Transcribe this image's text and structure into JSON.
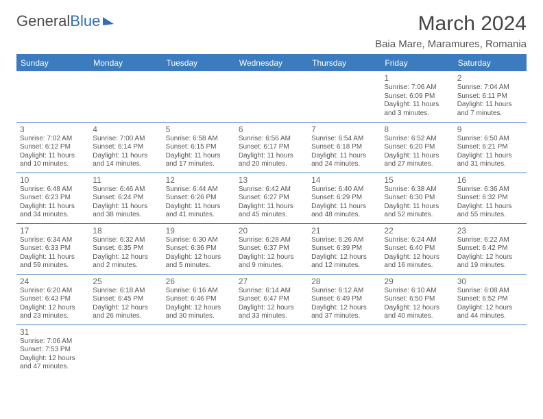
{
  "logo": {
    "textA": "General",
    "textB": "Blue"
  },
  "title": "March 2024",
  "location": "Baia Mare, Maramures, Romania",
  "colors": {
    "accent": "#3b7bbf",
    "text": "#555"
  },
  "dayHeaders": [
    "Sunday",
    "Monday",
    "Tuesday",
    "Wednesday",
    "Thursday",
    "Friday",
    "Saturday"
  ],
  "weeks": [
    [
      null,
      null,
      null,
      null,
      null,
      {
        "n": "1",
        "sr": "7:06 AM",
        "ss": "6:09 PM",
        "dl": "11 hours and 3 minutes."
      },
      {
        "n": "2",
        "sr": "7:04 AM",
        "ss": "6:11 PM",
        "dl": "11 hours and 7 minutes."
      }
    ],
    [
      {
        "n": "3",
        "sr": "7:02 AM",
        "ss": "6:12 PM",
        "dl": "11 hours and 10 minutes."
      },
      {
        "n": "4",
        "sr": "7:00 AM",
        "ss": "6:14 PM",
        "dl": "11 hours and 14 minutes."
      },
      {
        "n": "5",
        "sr": "6:58 AM",
        "ss": "6:15 PM",
        "dl": "11 hours and 17 minutes."
      },
      {
        "n": "6",
        "sr": "6:56 AM",
        "ss": "6:17 PM",
        "dl": "11 hours and 20 minutes."
      },
      {
        "n": "7",
        "sr": "6:54 AM",
        "ss": "6:18 PM",
        "dl": "11 hours and 24 minutes."
      },
      {
        "n": "8",
        "sr": "6:52 AM",
        "ss": "6:20 PM",
        "dl": "11 hours and 27 minutes."
      },
      {
        "n": "9",
        "sr": "6:50 AM",
        "ss": "6:21 PM",
        "dl": "11 hours and 31 minutes."
      }
    ],
    [
      {
        "n": "10",
        "sr": "6:48 AM",
        "ss": "6:23 PM",
        "dl": "11 hours and 34 minutes."
      },
      {
        "n": "11",
        "sr": "6:46 AM",
        "ss": "6:24 PM",
        "dl": "11 hours and 38 minutes."
      },
      {
        "n": "12",
        "sr": "6:44 AM",
        "ss": "6:26 PM",
        "dl": "11 hours and 41 minutes."
      },
      {
        "n": "13",
        "sr": "6:42 AM",
        "ss": "6:27 PM",
        "dl": "11 hours and 45 minutes."
      },
      {
        "n": "14",
        "sr": "6:40 AM",
        "ss": "6:29 PM",
        "dl": "11 hours and 48 minutes."
      },
      {
        "n": "15",
        "sr": "6:38 AM",
        "ss": "6:30 PM",
        "dl": "11 hours and 52 minutes."
      },
      {
        "n": "16",
        "sr": "6:36 AM",
        "ss": "6:32 PM",
        "dl": "11 hours and 55 minutes."
      }
    ],
    [
      {
        "n": "17",
        "sr": "6:34 AM",
        "ss": "6:33 PM",
        "dl": "11 hours and 59 minutes."
      },
      {
        "n": "18",
        "sr": "6:32 AM",
        "ss": "6:35 PM",
        "dl": "12 hours and 2 minutes."
      },
      {
        "n": "19",
        "sr": "6:30 AM",
        "ss": "6:36 PM",
        "dl": "12 hours and 5 minutes."
      },
      {
        "n": "20",
        "sr": "6:28 AM",
        "ss": "6:37 PM",
        "dl": "12 hours and 9 minutes."
      },
      {
        "n": "21",
        "sr": "6:26 AM",
        "ss": "6:39 PM",
        "dl": "12 hours and 12 minutes."
      },
      {
        "n": "22",
        "sr": "6:24 AM",
        "ss": "6:40 PM",
        "dl": "12 hours and 16 minutes."
      },
      {
        "n": "23",
        "sr": "6:22 AM",
        "ss": "6:42 PM",
        "dl": "12 hours and 19 minutes."
      }
    ],
    [
      {
        "n": "24",
        "sr": "6:20 AM",
        "ss": "6:43 PM",
        "dl": "12 hours and 23 minutes."
      },
      {
        "n": "25",
        "sr": "6:18 AM",
        "ss": "6:45 PM",
        "dl": "12 hours and 26 minutes."
      },
      {
        "n": "26",
        "sr": "6:16 AM",
        "ss": "6:46 PM",
        "dl": "12 hours and 30 minutes."
      },
      {
        "n": "27",
        "sr": "6:14 AM",
        "ss": "6:47 PM",
        "dl": "12 hours and 33 minutes."
      },
      {
        "n": "28",
        "sr": "6:12 AM",
        "ss": "6:49 PM",
        "dl": "12 hours and 37 minutes."
      },
      {
        "n": "29",
        "sr": "6:10 AM",
        "ss": "6:50 PM",
        "dl": "12 hours and 40 minutes."
      },
      {
        "n": "30",
        "sr": "6:08 AM",
        "ss": "6:52 PM",
        "dl": "12 hours and 44 minutes."
      }
    ],
    [
      {
        "n": "31",
        "sr": "7:06 AM",
        "ss": "7:53 PM",
        "dl": "12 hours and 47 minutes."
      },
      null,
      null,
      null,
      null,
      null,
      null
    ]
  ],
  "labels": {
    "sunrise": "Sunrise:",
    "sunset": "Sunset:",
    "daylight": "Daylight:"
  }
}
